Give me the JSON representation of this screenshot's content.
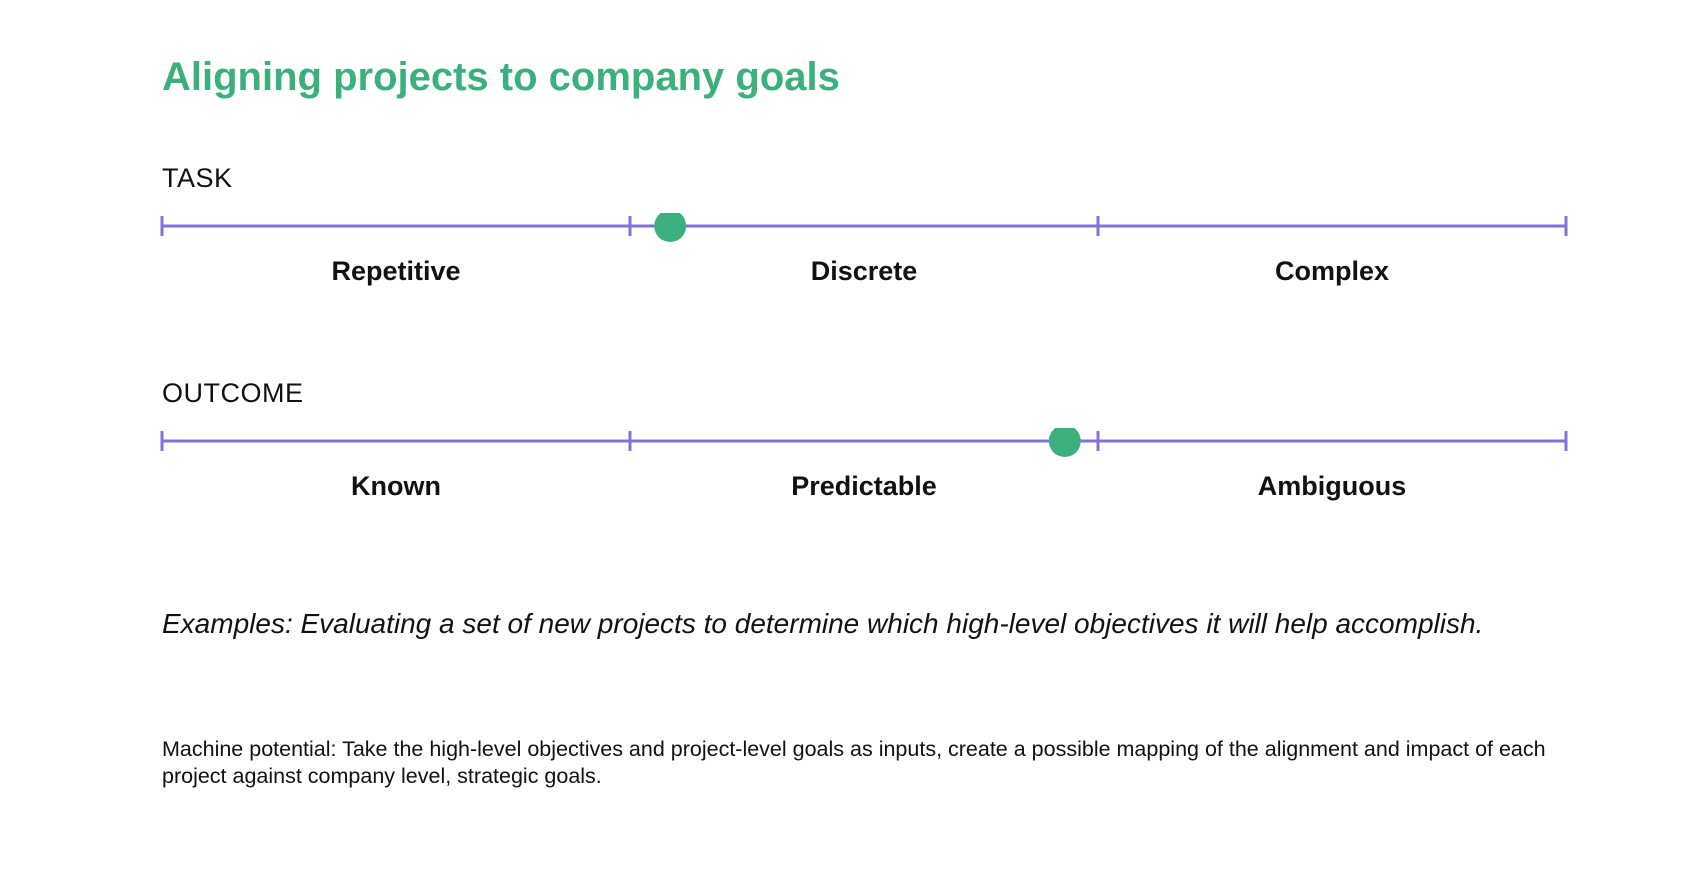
{
  "title": "Aligning projects to company goals",
  "colors": {
    "title": "#3bb07c",
    "scale_line": "#8274d6",
    "marker": "#3bb07c"
  },
  "scales": [
    {
      "label": "TASK",
      "segments": [
        "Repetitive",
        "Discrete",
        "Complex"
      ],
      "marker_position": 0.362
    },
    {
      "label": "OUTCOME",
      "segments": [
        "Known",
        "Predictable",
        "Ambiguous"
      ],
      "marker_position": 0.643
    }
  ],
  "examples": "Examples: Evaluating a set of new projects to determine which high-level objectives it will help accomplish.",
  "machine_potential": "Machine potential: Take the high-level objectives and project-level goals as inputs, create a possible mapping of the alignment and impact of each project against company level, strategic goals."
}
